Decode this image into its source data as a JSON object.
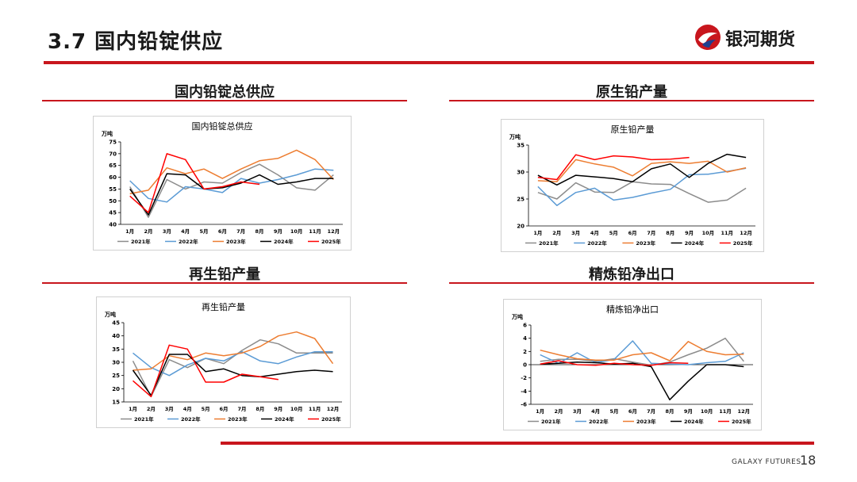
{
  "header": {
    "title": "3.7 国内铅锭供应",
    "logo_text": "银河期货",
    "accent_color": "#c8161d"
  },
  "footer": {
    "brand": "GALAXY FUTURES",
    "page_number": "18"
  },
  "sections": [
    {
      "title": "国内铅锭总供应"
    },
    {
      "title": "原生铅产量"
    },
    {
      "title": "再生铅产量"
    },
    {
      "title": "精炼铅净出口"
    }
  ],
  "series_colors": {
    "2021年": "#8c8c8c",
    "2022年": "#5b9bd5",
    "2023年": "#ed7d31",
    "2024年": "#000000",
    "2025年": "#ff0000"
  },
  "chart_data": [
    {
      "type": "line",
      "title": "国内铅锭总供应",
      "unit": "万吨",
      "categories": [
        "1月",
        "2月",
        "3月",
        "4月",
        "5月",
        "6月",
        "7月",
        "8月",
        "9月",
        "10月",
        "11月",
        "12月"
      ],
      "ylim": [
        40,
        75
      ],
      "yticks": [
        40,
        45,
        50,
        55,
        60,
        65,
        70,
        75
      ],
      "series": [
        {
          "name": "2021年",
          "values": [
            56,
            43,
            59,
            55,
            58,
            57.5,
            62,
            65.5,
            61,
            55.5,
            54.5,
            61
          ]
        },
        {
          "name": "2022年",
          "values": [
            58.5,
            51,
            49.5,
            56,
            55,
            53.5,
            59.5,
            57.5,
            59,
            61,
            63.5,
            63
          ]
        },
        {
          "name": "2023年",
          "values": [
            53,
            54.5,
            64,
            61.5,
            63.5,
            59.5,
            63.5,
            67,
            68,
            71.5,
            67.5,
            59
          ]
        },
        {
          "name": "2024年",
          "values": [
            55,
            44,
            61.5,
            61,
            55,
            55.5,
            57.5,
            61,
            57,
            58,
            59.5,
            59.5
          ]
        },
        {
          "name": "2025年",
          "values": [
            52,
            45,
            70,
            67.5,
            55,
            56,
            58,
            57,
            null,
            null,
            null,
            null
          ]
        }
      ]
    },
    {
      "type": "line",
      "title": "原生铅产量",
      "unit": "万吨",
      "categories": [
        "1月",
        "2月",
        "3月",
        "4月",
        "5月",
        "6月",
        "7月",
        "8月",
        "9月",
        "10月",
        "11月",
        "12月"
      ],
      "ylim": [
        20,
        35
      ],
      "yticks": [
        20,
        25,
        30,
        35
      ],
      "series": [
        {
          "name": "2021年",
          "values": [
            26.2,
            25,
            28,
            26.3,
            26.2,
            28.2,
            27.8,
            27.7,
            26,
            24.4,
            24.8,
            27
          ]
        },
        {
          "name": "2022年",
          "values": [
            27.3,
            23.8,
            26.2,
            27,
            24.8,
            25.3,
            26.1,
            26.8,
            29.5,
            29.6,
            30.1,
            30.7
          ]
        },
        {
          "name": "2023年",
          "values": [
            28.4,
            28.2,
            32.3,
            31.5,
            30.9,
            29.3,
            31.6,
            31.9,
            31.6,
            32,
            30,
            30.8
          ]
        },
        {
          "name": "2024年",
          "values": [
            29.4,
            27.6,
            29.4,
            29.1,
            28.8,
            28.2,
            30.6,
            31.5,
            29,
            31.6,
            33.3,
            32.7
          ]
        },
        {
          "name": "2025年",
          "values": [
            29,
            28.6,
            33.2,
            32.3,
            33,
            32.8,
            32.3,
            32.4,
            32.7,
            null,
            null,
            null
          ]
        }
      ]
    },
    {
      "type": "line",
      "title": "再生铅产量",
      "unit": "万吨",
      "categories": [
        "1月",
        "2月",
        "3月",
        "4月",
        "5月",
        "6月",
        "7月",
        "8月",
        "9月",
        "10月",
        "11月",
        "12月"
      ],
      "ylim": [
        15,
        45
      ],
      "yticks": [
        15,
        20,
        25,
        30,
        35,
        40,
        45
      ],
      "series": [
        {
          "name": "2021年",
          "values": [
            30.5,
            17,
            31,
            28,
            31.5,
            29.5,
            34.5,
            38.5,
            37,
            33.5,
            33.5,
            33.5
          ]
        },
        {
          "name": "2022年",
          "values": [
            33.5,
            28,
            25,
            29,
            31.5,
            30.5,
            34,
            30.5,
            29.5,
            32,
            34,
            34
          ]
        },
        {
          "name": "2023年",
          "values": [
            27,
            27.5,
            32.5,
            31,
            33.5,
            32.5,
            33.5,
            36,
            40,
            41.5,
            39,
            29.5
          ]
        },
        {
          "name": "2024年",
          "values": [
            27,
            17.5,
            33,
            33,
            26.5,
            27.5,
            25,
            24.5,
            25.5,
            26.5,
            27,
            26.5
          ]
        },
        {
          "name": "2025年",
          "values": [
            23,
            17,
            36.5,
            35,
            22.5,
            22.5,
            25.5,
            24.5,
            23.5,
            null,
            null,
            null
          ]
        }
      ]
    },
    {
      "type": "line",
      "title": "精炼铅净出口",
      "unit": "万吨",
      "categories": [
        "1月",
        "2月",
        "3月",
        "4月",
        "5月",
        "6月",
        "7月",
        "8月",
        "9月",
        "10月",
        "11月",
        "12月"
      ],
      "ylim": [
        -6,
        6
      ],
      "yticks": [
        -6,
        -4,
        -2,
        0,
        2,
        4,
        6
      ],
      "series": [
        {
          "name": "2021年",
          "values": [
            0.5,
            0.8,
            0.8,
            0.5,
            0.9,
            0.4,
            -0.1,
            0.4,
            1.5,
            2.5,
            4,
            0.5
          ]
        },
        {
          "name": "2022年",
          "values": [
            1.5,
            0.2,
            1.8,
            0.3,
            0.8,
            3.6,
            0.2,
            0.1,
            0,
            0.3,
            0.5,
            1.8
          ]
        },
        {
          "name": "2023年",
          "values": [
            2.2,
            1.5,
            0.9,
            0.7,
            0.7,
            1.5,
            1.8,
            0.6,
            3.5,
            2,
            1.5,
            1.6
          ]
        },
        {
          "name": "2024年",
          "values": [
            0.1,
            0.2,
            0.4,
            0.3,
            0.1,
            0.2,
            -0.3,
            -5.3,
            -2.5,
            0,
            0,
            -0.3
          ]
        },
        {
          "name": "2025年",
          "values": [
            0.1,
            0.6,
            0,
            -0.1,
            0.2,
            0,
            -0.1,
            0.3,
            0.2,
            null,
            null,
            null
          ]
        }
      ]
    }
  ]
}
